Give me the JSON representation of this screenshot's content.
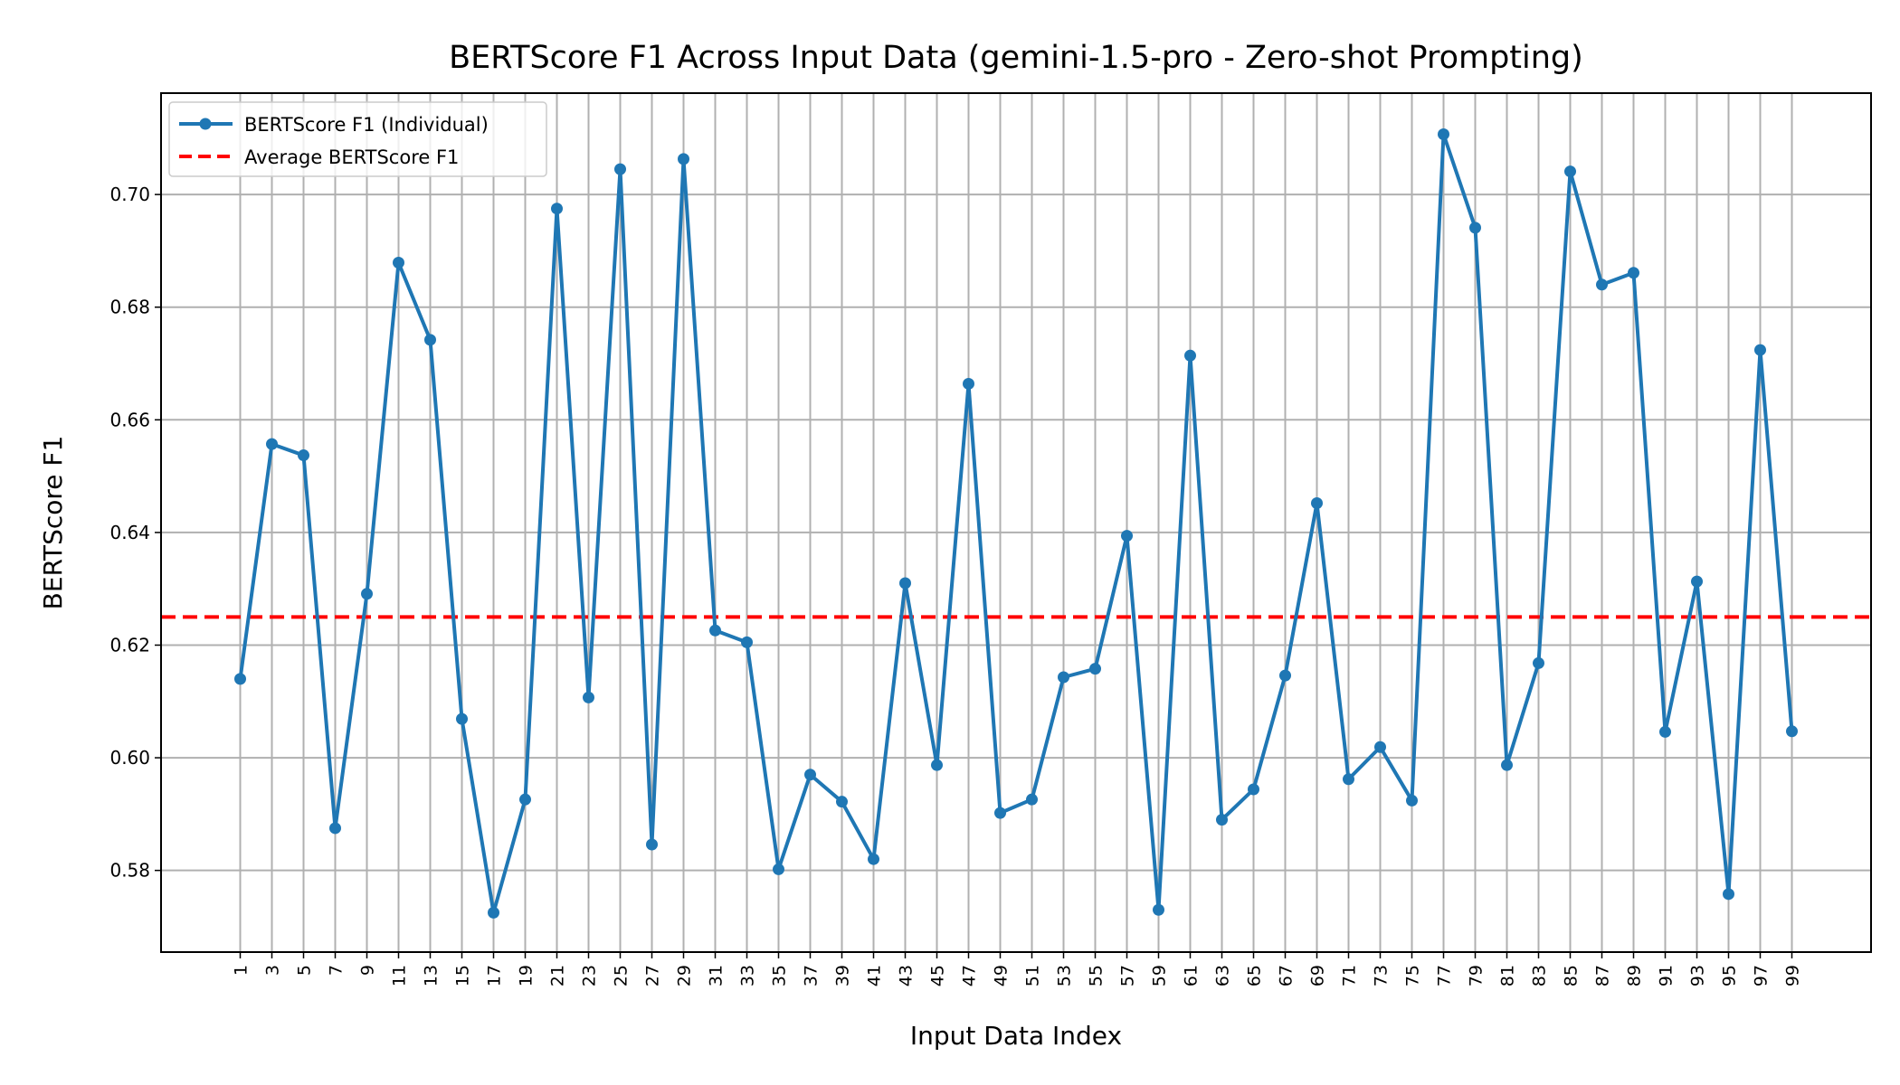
{
  "chart_data": {
    "type": "line",
    "title": "BERTScore F1 Across Input Data (gemini-1.5-pro - Zero-shot Prompting)",
    "xlabel": "Input Data Index",
    "ylabel": "BERTScore F1",
    "x": [
      1,
      3,
      5,
      7,
      9,
      11,
      13,
      15,
      17,
      19,
      21,
      23,
      25,
      27,
      29,
      31,
      33,
      35,
      37,
      39,
      41,
      43,
      45,
      47,
      49,
      51,
      53,
      55,
      57,
      59,
      61,
      63,
      65,
      67,
      69,
      71,
      73,
      75,
      77,
      79,
      81,
      83,
      85,
      87,
      89,
      91,
      93,
      95,
      97,
      99
    ],
    "x_tick_labels": [
      "1",
      "3",
      "5",
      "7",
      "9",
      "11",
      "13",
      "15",
      "17",
      "19",
      "21",
      "23",
      "25",
      "27",
      "29",
      "31",
      "33",
      "35",
      "37",
      "39",
      "41",
      "43",
      "45",
      "47",
      "49",
      "51",
      "53",
      "55",
      "57",
      "59",
      "61",
      "63",
      "65",
      "67",
      "69",
      "71",
      "73",
      "75",
      "77",
      "79",
      "81",
      "83",
      "85",
      "87",
      "89",
      "91",
      "93",
      "95",
      "97",
      "99"
    ],
    "y_ticks": [
      0.58,
      0.6,
      0.62,
      0.64,
      0.66,
      0.68,
      0.7
    ],
    "y_tick_labels": [
      "0.58",
      "0.60",
      "0.62",
      "0.64",
      "0.66",
      "0.68",
      "0.70"
    ],
    "xlim": [
      -4,
      104
    ],
    "ylim": [
      0.5655,
      0.718
    ],
    "series": [
      {
        "name": "BERTScore F1 (Individual)",
        "color": "#1f77b4",
        "values": [
          0.614,
          0.6557,
          0.6537,
          0.5875,
          0.6291,
          0.6879,
          0.6742,
          0.6069,
          0.5725,
          0.5926,
          0.6975,
          0.6107,
          0.7045,
          0.5846,
          0.7063,
          0.6226,
          0.6205,
          0.5802,
          0.597,
          0.5922,
          0.582,
          0.631,
          0.5987,
          0.6664,
          0.5902,
          0.5926,
          0.6143,
          0.6158,
          0.6394,
          0.573,
          0.6714,
          0.589,
          0.5944,
          0.6146,
          0.6452,
          0.5962,
          0.6019,
          0.5924,
          0.7107,
          0.6941,
          0.5987,
          0.6168,
          0.7041,
          0.684,
          0.6861,
          0.6046,
          0.6313,
          0.5758,
          0.6724,
          0.6047
        ]
      }
    ],
    "average": {
      "name": "Average BERTScore F1",
      "value": 0.625,
      "color": "#ff0000"
    },
    "grid": true,
    "legend_position": "upper-left"
  }
}
